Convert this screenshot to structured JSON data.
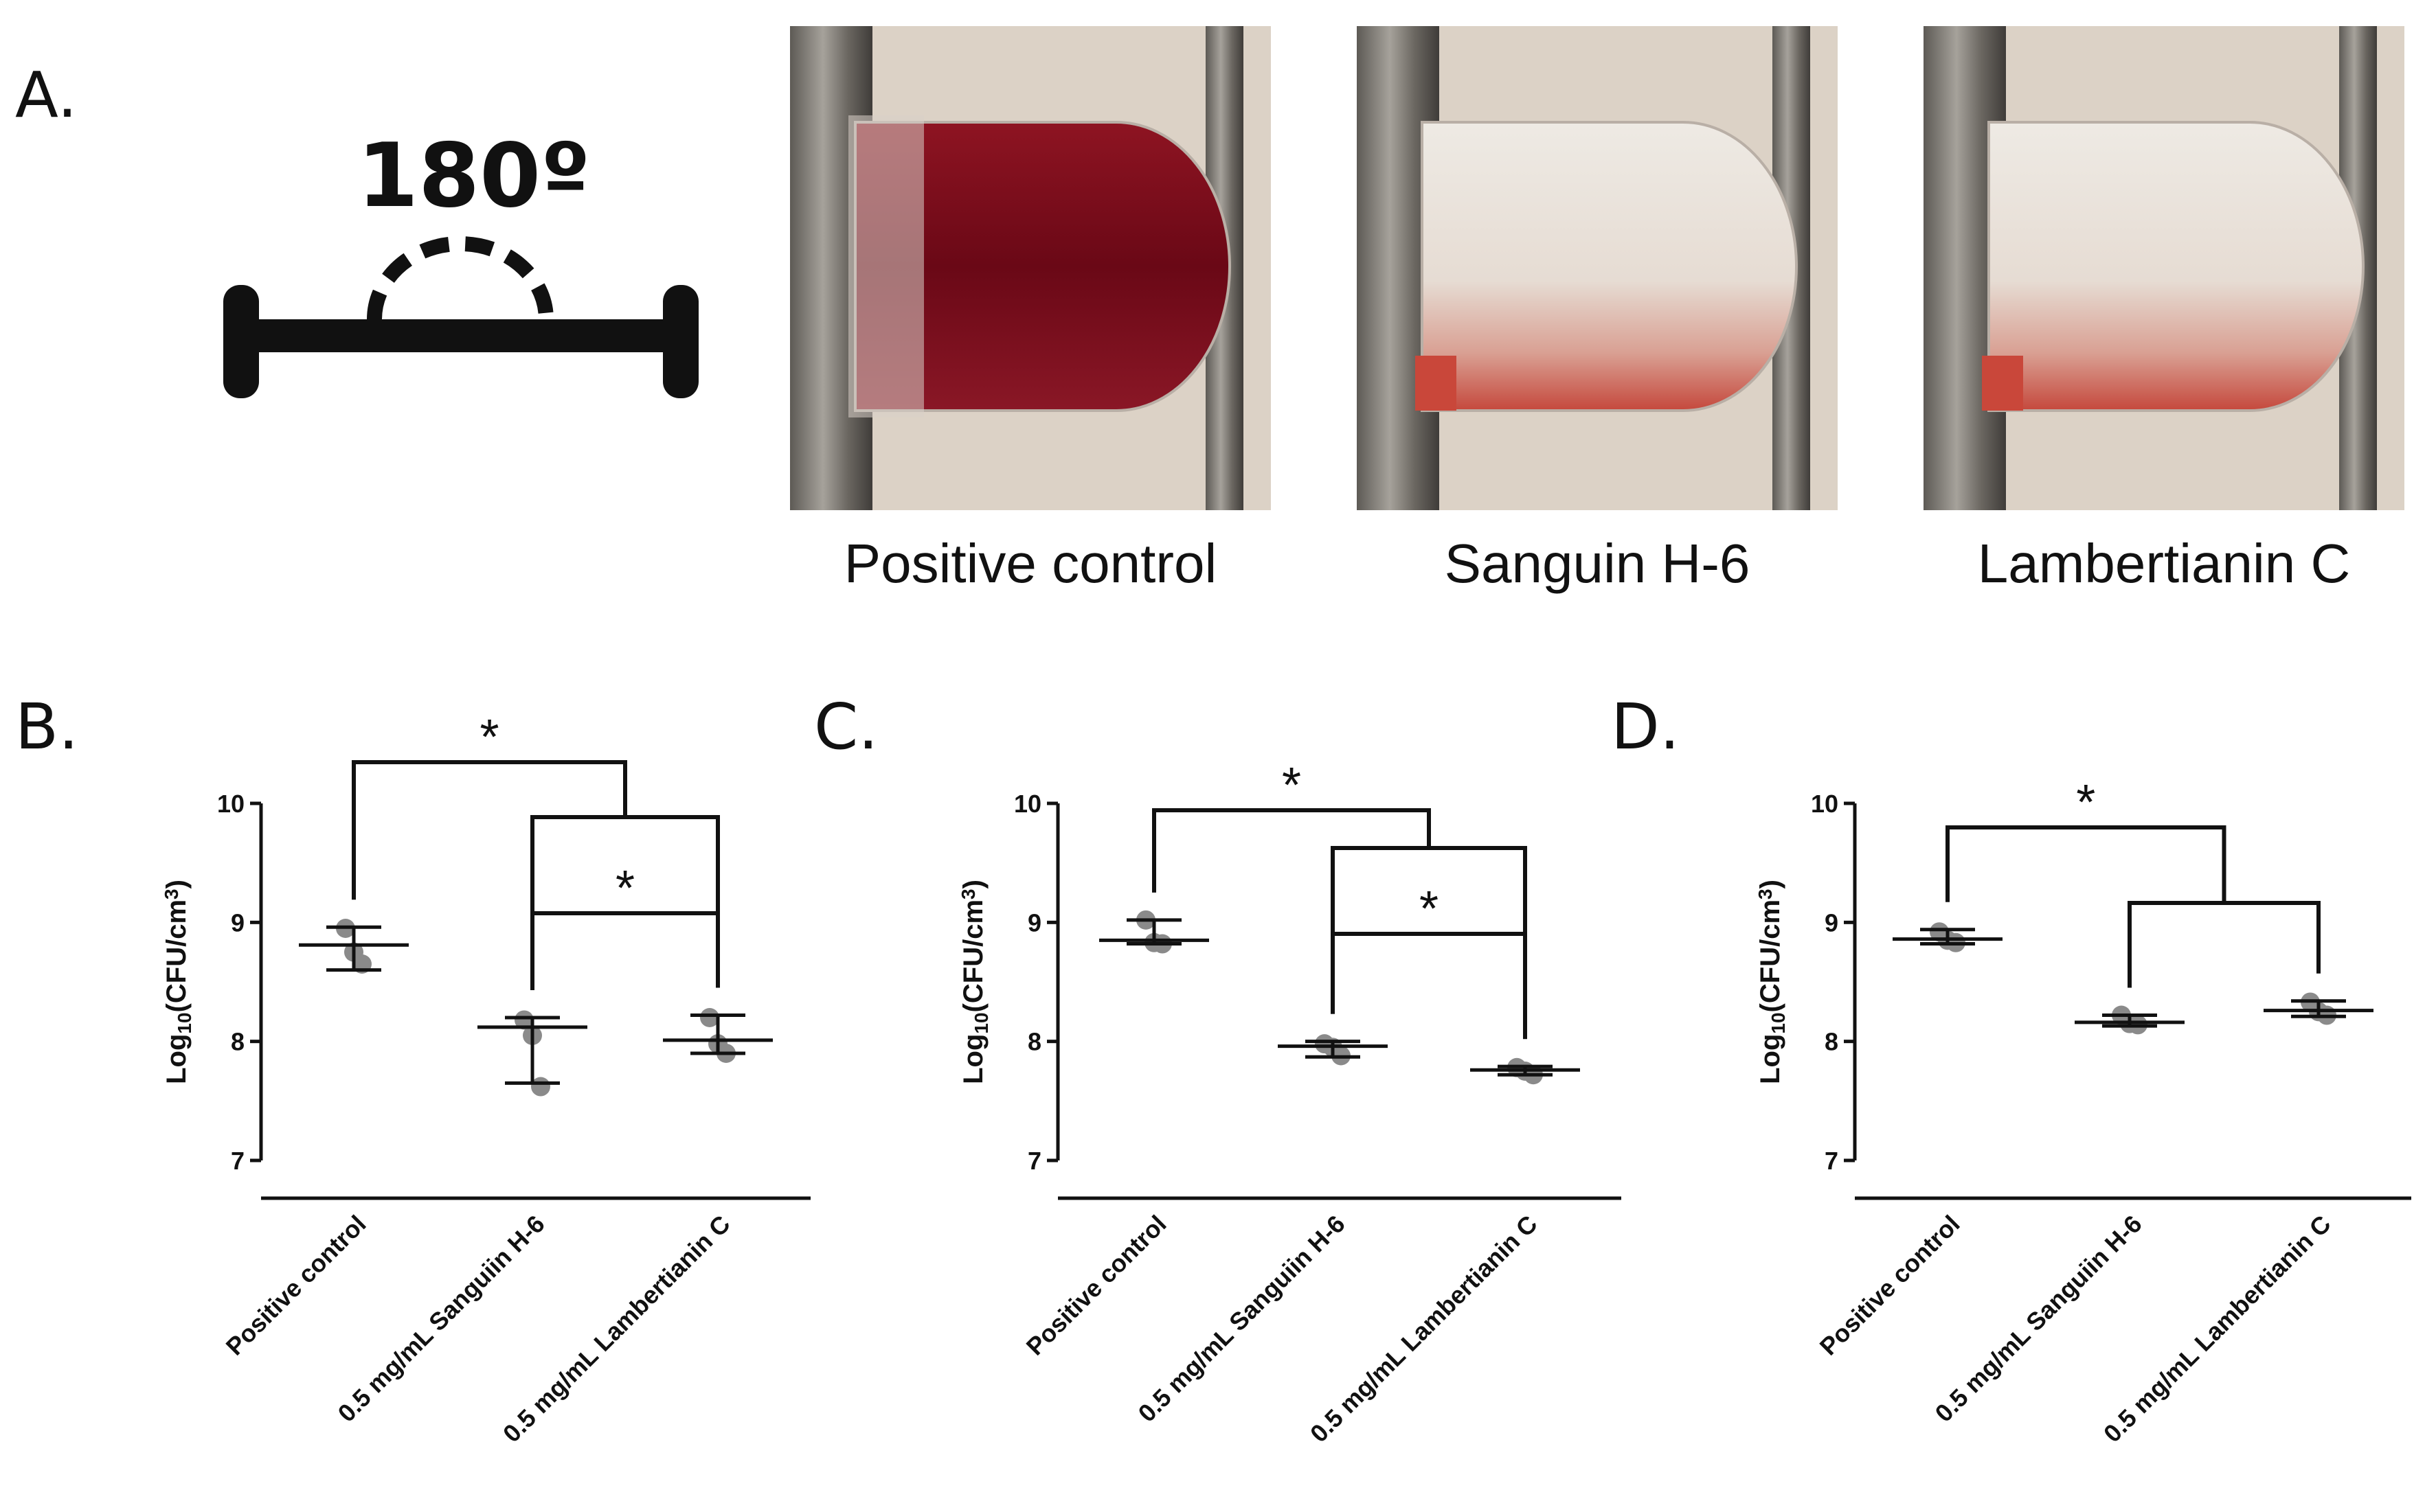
{
  "panel_a": {
    "letter": "A.",
    "angle_label": "180º",
    "photos": [
      {
        "caption": "Positive control",
        "liquid": "full"
      },
      {
        "caption": "Sanguin H-6",
        "liquid": "clear"
      },
      {
        "caption": "Lambertianin C",
        "liquid": "clear"
      }
    ]
  },
  "colors": {
    "blood_dark": "#7e0c1c",
    "blood_light": "#c9473a",
    "photo_bg": "#dcd2c6",
    "marker": "#8a8a8a",
    "ink": "#111111"
  },
  "chart_data": [
    {
      "panel": "B.",
      "type": "scatter",
      "ylabel_main": "Log",
      "ylabel_sub": "10",
      "ylabel_rest": "(CFU/cm",
      "ylabel_sup": "3",
      "ylabel_end": ")",
      "ylim": [
        7,
        10
      ],
      "yticks": [
        "7",
        "8",
        "9",
        "10"
      ],
      "categories": [
        "Positive control",
        "0.5 mg/mL Sanguiin H-6",
        "0.5 mg/mL Lambertianin C"
      ],
      "points": [
        [
          8.95,
          8.75,
          8.65
        ],
        [
          8.18,
          8.05,
          7.62
        ],
        [
          8.2,
          7.98,
          7.9
        ]
      ],
      "mean": [
        8.81,
        8.12,
        8.01
      ],
      "err_low": [
        8.6,
        7.65,
        7.9
      ],
      "err_high": [
        8.96,
        8.2,
        8.22
      ],
      "significance": [
        {
          "type": "one_vs_group",
          "from": 0,
          "to": [
            1,
            2
          ],
          "label": "*"
        },
        {
          "type": "pair",
          "from": 1,
          "to": [
            2
          ],
          "label": "*"
        }
      ]
    },
    {
      "panel": "C.",
      "type": "scatter",
      "ylabel_main": "Log",
      "ylabel_sub": "10",
      "ylabel_rest": "(CFU/cm",
      "ylabel_sup": "3",
      "ylabel_end": ")",
      "ylim": [
        7,
        10
      ],
      "yticks": [
        "7",
        "8",
        "9",
        "10"
      ],
      "categories": [
        "Positive control",
        "0.5 mg/mL Sanguiin H-6",
        "0.5 mg/mL Lambertianin C"
      ],
      "points": [
        [
          9.02,
          8.83,
          8.82
        ],
        [
          7.98,
          7.95,
          7.88
        ],
        [
          7.78,
          7.75,
          7.72
        ]
      ],
      "mean": [
        8.85,
        7.96,
        7.76
      ],
      "err_low": [
        8.82,
        7.87,
        7.72
      ],
      "err_high": [
        9.02,
        8.0,
        7.79
      ],
      "significance": [
        {
          "type": "one_vs_group",
          "from": 0,
          "to": [
            1,
            2
          ],
          "label": "*"
        },
        {
          "type": "pair",
          "from": 1,
          "to": [
            2
          ],
          "label": "*"
        }
      ]
    },
    {
      "panel": "D.",
      "type": "scatter",
      "ylabel_main": "Log",
      "ylabel_sub": "10",
      "ylabel_rest": "(CFU/cm",
      "ylabel_sup": "3",
      "ylabel_end": ")",
      "ylim": [
        7,
        10
      ],
      "yticks": [
        "7",
        "8",
        "9",
        "10"
      ],
      "categories": [
        "Positive control",
        "0.5 mg/mL Sanguiin H-6",
        "0.5 mg/mL Lambertianin C"
      ],
      "points": [
        [
          8.92,
          8.85,
          8.83
        ],
        [
          8.22,
          8.15,
          8.14
        ],
        [
          8.33,
          8.25,
          8.22
        ]
      ],
      "mean": [
        8.86,
        8.16,
        8.26
      ],
      "err_low": [
        8.82,
        8.13,
        8.21
      ],
      "err_high": [
        8.94,
        8.22,
        8.34
      ],
      "significance": [
        {
          "type": "one_vs_group",
          "from": 0,
          "to": [
            1,
            2
          ],
          "label": "*"
        }
      ]
    }
  ]
}
